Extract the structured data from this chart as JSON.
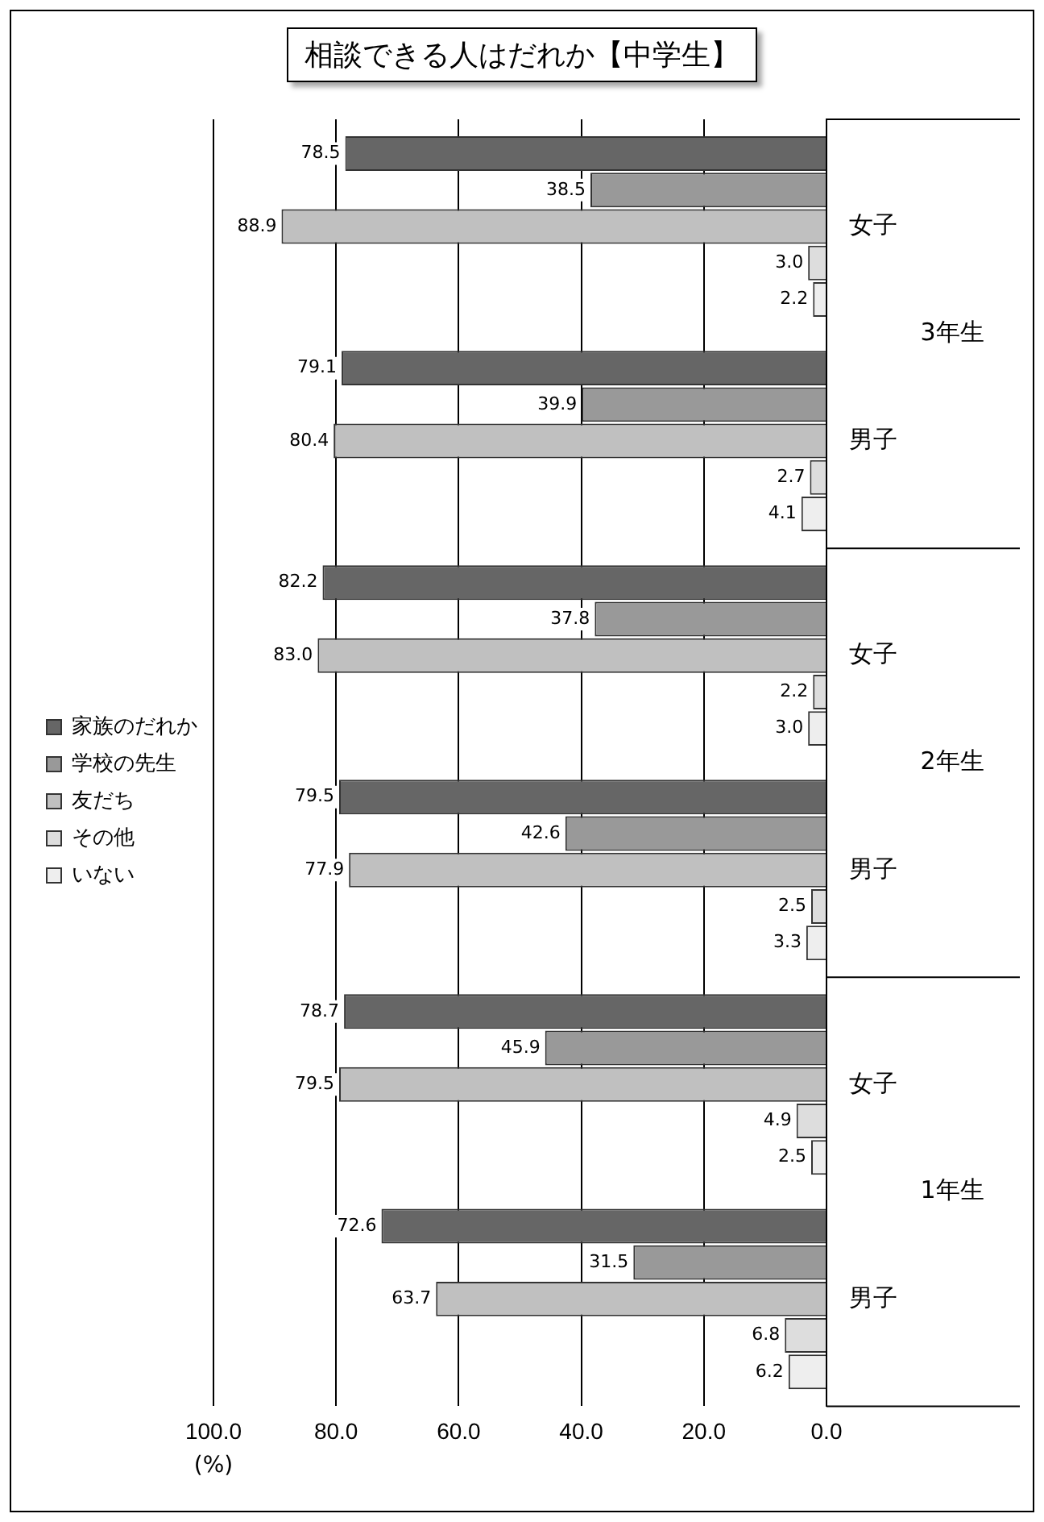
{
  "chart_data": {
    "type": "bar",
    "orientation": "horizontal",
    "title": "相談できる人はだれか【中学生】",
    "xlabel": "(%)",
    "categories": [
      "女子",
      "男子",
      "女子",
      "男子",
      "女子",
      "男子"
    ],
    "annotations": [
      "3年生",
      "2年生",
      "1年生"
    ],
    "series": [
      {
        "name": "家族のだれか",
        "color": "#666666",
        "values": [
          78.5,
          79.1,
          82.2,
          79.5,
          78.7,
          72.6
        ],
        "value_labels": [
          "78.5",
          "79.1",
          "82.2",
          "79.5",
          "78.7",
          "72.6"
        ]
      },
      {
        "name": "学校の先生",
        "color": "#999999",
        "values": [
          38.5,
          39.9,
          37.8,
          42.6,
          45.9,
          31.5
        ],
        "value_labels": [
          "38.5",
          "39.9",
          "37.8",
          "42.6",
          "45.9",
          "31.5"
        ]
      },
      {
        "name": "友だち",
        "color": "#c0c0c0",
        "values": [
          88.9,
          80.4,
          83.0,
          77.9,
          79.5,
          63.7
        ],
        "value_labels": [
          "88.9",
          "80.4",
          "83.0",
          "77.9",
          "79.5",
          "63.7"
        ]
      },
      {
        "name": "その他",
        "color": "#dddddd",
        "values": [
          3.0,
          2.7,
          2.2,
          2.5,
          4.9,
          6.8
        ],
        "value_labels": [
          "3.0",
          "2.7",
          "2.2",
          "2.5",
          "4.9",
          "6.8"
        ]
      },
      {
        "name": "いない",
        "color": "#eeeeee",
        "values": [
          2.2,
          4.1,
          3.0,
          3.3,
          2.5,
          6.2
        ],
        "value_labels": [
          "2.2",
          "4.1",
          "3.0",
          "3.3",
          "2.5",
          "6.2"
        ]
      }
    ],
    "xlim": [
      100,
      0
    ],
    "xticks": [
      {
        "value": 0,
        "label": "0.0"
      },
      {
        "value": 20,
        "label": "20.0"
      },
      {
        "value": 40,
        "label": "40.0"
      },
      {
        "value": 60,
        "label": "60.0"
      },
      {
        "value": 80,
        "label": "80.0"
      },
      {
        "value": 100,
        "label": "100.0"
      }
    ],
    "grid": "x",
    "legend": "left"
  }
}
